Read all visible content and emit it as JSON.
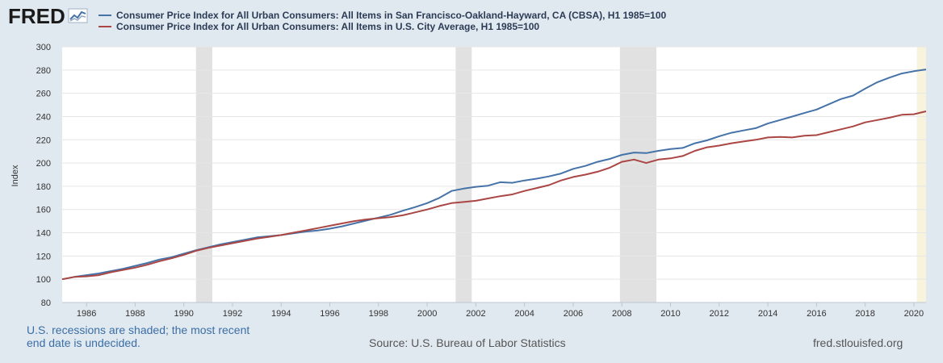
{
  "header": {
    "logo_text": "FRED"
  },
  "colors": {
    "series_sf": "#4572a7",
    "series_us": "#aa4643",
    "recession": "#e1e1e1",
    "undecided": "#f7f3dd",
    "background": "#e1e9f0"
  },
  "footer": {
    "recession_note_line1": "U.S. recessions are shaded; the most recent",
    "recession_note_line2": "end date is undecided.",
    "source": "Source: U.S. Bureau of Labor Statistics",
    "site": "fred.stlouisfed.org"
  },
  "chart_data": {
    "type": "line",
    "title": "",
    "xlabel": "",
    "ylabel": "Index",
    "xlim": [
      1985.0,
      2020.5
    ],
    "ylim": [
      80,
      300
    ],
    "yticks": [
      80,
      100,
      120,
      140,
      160,
      180,
      200,
      220,
      240,
      260,
      280,
      300
    ],
    "xticks": [
      1986,
      1988,
      1990,
      1992,
      1994,
      1996,
      1998,
      2000,
      2002,
      2004,
      2006,
      2008,
      2010,
      2012,
      2014,
      2016,
      2018,
      2020
    ],
    "grid": true,
    "legend_position": "top",
    "recessions": [
      [
        1990.5,
        1991.17
      ],
      [
        2001.17,
        2001.83
      ],
      [
        2007.92,
        2009.42
      ]
    ],
    "undecided_recession_start": 2020.12,
    "series": [
      {
        "name": "Consumer Price Index for All Urban Consumers: All Items in San Francisco-Oakland-Hayward, CA (CBSA), H1 1985=100",
        "color": "#4572a7",
        "x": [
          1985.0,
          1985.5,
          1986.0,
          1986.5,
          1987.0,
          1987.5,
          1988.0,
          1988.5,
          1989.0,
          1989.5,
          1990.0,
          1990.5,
          1991.0,
          1991.5,
          1992.0,
          1992.5,
          1993.0,
          1993.5,
          1994.0,
          1994.5,
          1995.0,
          1995.5,
          1996.0,
          1996.5,
          1997.0,
          1997.5,
          1998.0,
          1998.5,
          1999.0,
          1999.5,
          2000.0,
          2000.5,
          2001.0,
          2001.5,
          2002.0,
          2002.5,
          2003.0,
          2003.5,
          2004.0,
          2004.5,
          2005.0,
          2005.5,
          2006.0,
          2006.5,
          2007.0,
          2007.5,
          2008.0,
          2008.5,
          2009.0,
          2009.5,
          2010.0,
          2010.5,
          2011.0,
          2011.5,
          2012.0,
          2012.5,
          2013.0,
          2013.5,
          2014.0,
          2014.5,
          2015.0,
          2015.5,
          2016.0,
          2016.5,
          2017.0,
          2017.5,
          2018.0,
          2018.5,
          2019.0,
          2019.5,
          2020.0,
          2020.5
        ],
        "values": [
          100.0,
          102.0,
          103.5,
          105.0,
          107.0,
          109.0,
          111.5,
          114.0,
          117.0,
          119.0,
          122.0,
          125.0,
          127.5,
          130.0,
          132.0,
          134.0,
          136.0,
          137.0,
          138.0,
          139.5,
          141.0,
          142.0,
          143.5,
          145.5,
          148.0,
          150.5,
          153.0,
          155.5,
          159.0,
          162.0,
          165.5,
          170.0,
          176.0,
          178.0,
          179.5,
          180.5,
          183.5,
          183.0,
          185.0,
          186.5,
          188.5,
          191.0,
          195.0,
          197.5,
          201.0,
          203.5,
          207.0,
          209.0,
          208.5,
          210.5,
          212.0,
          213.0,
          217.0,
          219.5,
          223.0,
          226.0,
          228.0,
          230.0,
          234.0,
          237.0,
          240.0,
          243.0,
          246.0,
          250.5,
          255.0,
          258.0,
          264.0,
          269.5,
          273.5,
          277.0,
          279.0,
          280.5
        ]
      },
      {
        "name": "Consumer Price Index for All Urban Consumers: All Items in U.S. City Average, H1 1985=100",
        "color": "#aa4643",
        "x": [
          1985.0,
          1985.5,
          1986.0,
          1986.5,
          1987.0,
          1987.5,
          1988.0,
          1988.5,
          1989.0,
          1989.5,
          1990.0,
          1990.5,
          1991.0,
          1991.5,
          1992.0,
          1992.5,
          1993.0,
          1993.5,
          1994.0,
          1994.5,
          1995.0,
          1995.5,
          1996.0,
          1996.5,
          1997.0,
          1997.5,
          1998.0,
          1998.5,
          1999.0,
          1999.5,
          2000.0,
          2000.5,
          2001.0,
          2001.5,
          2002.0,
          2002.5,
          2003.0,
          2003.5,
          2004.0,
          2004.5,
          2005.0,
          2005.5,
          2006.0,
          2006.5,
          2007.0,
          2007.5,
          2008.0,
          2008.5,
          2009.0,
          2009.5,
          2010.0,
          2010.5,
          2011.0,
          2011.5,
          2012.0,
          2012.5,
          2013.0,
          2013.5,
          2014.0,
          2014.5,
          2015.0,
          2015.5,
          2016.0,
          2016.5,
          2017.0,
          2017.5,
          2018.0,
          2018.5,
          2019.0,
          2019.5,
          2020.0,
          2020.5
        ],
        "values": [
          100.0,
          102.0,
          102.5,
          103.5,
          106.0,
          108.0,
          110.0,
          112.5,
          115.5,
          118.0,
          121.0,
          124.5,
          127.0,
          129.0,
          131.0,
          133.0,
          135.0,
          136.5,
          138.0,
          140.0,
          142.0,
          144.0,
          146.0,
          148.0,
          150.0,
          151.5,
          152.5,
          153.5,
          155.0,
          157.5,
          160.0,
          163.0,
          165.5,
          166.5,
          167.5,
          169.5,
          171.5,
          173.0,
          176.0,
          178.5,
          181.0,
          185.0,
          188.0,
          190.0,
          192.5,
          196.0,
          201.0,
          203.0,
          200.0,
          203.0,
          204.0,
          206.0,
          210.5,
          213.5,
          215.0,
          217.0,
          218.5,
          220.0,
          222.0,
          222.5,
          222.0,
          223.5,
          224.0,
          226.5,
          229.0,
          231.5,
          235.0,
          237.0,
          239.0,
          241.5,
          242.0,
          244.5
        ]
      }
    ]
  }
}
